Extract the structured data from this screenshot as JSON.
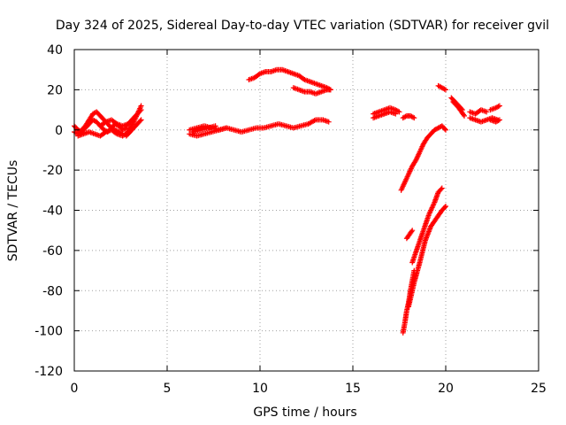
{
  "chart_data": {
    "type": "scatter",
    "title": "Day 324 of 2025, Sidereal Day-to-day VTEC variation (SDTVAR) for receiver gvil",
    "xlabel": "GPS time / hours",
    "ylabel": "SDTVAR / TECUs",
    "xlim": [
      0,
      25
    ],
    "ylim": [
      -120,
      40
    ],
    "xticks": [
      "0",
      "5",
      "10",
      "15",
      "20",
      "25"
    ],
    "yticks": [
      "-120",
      "-100",
      "-80",
      "-60",
      "-40",
      "-20",
      "0",
      "20",
      "40"
    ],
    "grid": true,
    "marker": "+",
    "color": "#ff0000",
    "series": [
      {
        "x": [
          0.0,
          0.2,
          0.4,
          0.6,
          0.8,
          1.0,
          1.2,
          1.4,
          1.6,
          1.8,
          2.0,
          2.2,
          2.4,
          2.6,
          2.8
        ],
        "y": [
          2,
          0,
          -1,
          1,
          3,
          5,
          4,
          2,
          0,
          -1,
          1,
          3,
          2,
          0,
          1
        ]
      },
      {
        "x": [
          0.0,
          0.2,
          0.4,
          0.6,
          0.8,
          1.0,
          1.2,
          1.4,
          1.6,
          1.8,
          2.0,
          2.2,
          2.4,
          2.6
        ],
        "y": [
          -1,
          -2,
          0,
          2,
          5,
          8,
          9,
          7,
          5,
          3,
          1,
          0,
          -1,
          -2
        ]
      },
      {
        "x": [
          0.2,
          0.5,
          0.8,
          1.1,
          1.4,
          1.7,
          2.0,
          2.3,
          2.6,
          2.8
        ],
        "y": [
          -3,
          -2,
          -1,
          -2,
          -3,
          -1,
          0,
          -2,
          -3,
          -2
        ]
      },
      {
        "x": [
          1.4,
          1.7,
          2.0,
          2.3,
          2.6,
          2.9
        ],
        "y": [
          2,
          4,
          5,
          3,
          2,
          3
        ]
      },
      {
        "x": [
          2.8,
          3.0,
          3.2,
          3.4,
          3.6
        ],
        "y": [
          2,
          4,
          6,
          8,
          10
        ]
      },
      {
        "x": [
          2.8,
          3.0,
          3.2,
          3.4,
          3.6
        ],
        "y": [
          -3,
          -1,
          1,
          3,
          5
        ]
      },
      {
        "x": [
          2.8,
          3.0,
          3.2,
          3.4,
          3.6
        ],
        "y": [
          -2,
          1,
          4,
          8,
          12
        ]
      },
      {
        "x": [
          6.2,
          6.6,
          7.0,
          7.4,
          7.8,
          8.2,
          8.6,
          9.0,
          9.4,
          9.8,
          10.2,
          10.6,
          11.0,
          11.4,
          11.8,
          12.2,
          12.6,
          13.0,
          13.4,
          13.7
        ],
        "y": [
          0,
          1,
          2,
          1,
          0,
          1,
          0,
          -1,
          0,
          1,
          1,
          2,
          3,
          2,
          1,
          2,
          3,
          5,
          5,
          4
        ]
      },
      {
        "x": [
          6.2,
          6.6,
          7.0,
          7.4,
          7.8,
          8.2
        ],
        "y": [
          -2,
          -3,
          -2,
          -1,
          0,
          1
        ]
      },
      {
        "x": [
          6.4,
          6.8,
          7.2,
          7.6
        ],
        "y": [
          -1,
          0,
          1,
          2
        ]
      },
      {
        "x": [
          9.4,
          9.7,
          10.0,
          10.3,
          10.6,
          10.9,
          11.2,
          11.5,
          11.8,
          12.1,
          12.4,
          12.7,
          13.0,
          13.3,
          13.6,
          13.8
        ],
        "y": [
          25,
          26,
          28,
          29,
          29,
          30,
          30,
          29,
          28,
          27,
          25,
          24,
          23,
          22,
          21,
          20
        ]
      },
      {
        "x": [
          11.8,
          12.1,
          12.4,
          12.7,
          13.0,
          13.3,
          13.6,
          13.8
        ],
        "y": [
          21,
          20,
          19,
          19,
          18,
          19,
          20,
          20
        ]
      },
      {
        "x": [
          16.1,
          16.4,
          16.7,
          17.0,
          17.3,
          17.5
        ],
        "y": [
          8,
          9,
          10,
          11,
          10,
          9
        ]
      },
      {
        "x": [
          16.1,
          16.4,
          16.7,
          17.0,
          17.3
        ],
        "y": [
          6,
          7,
          8,
          9,
          8
        ]
      },
      {
        "x": [
          17.7,
          17.9,
          18.1,
          18.3
        ],
        "y": [
          6,
          7,
          7,
          6
        ]
      },
      {
        "x": [
          17.6,
          17.8,
          18.0,
          18.2,
          18.4,
          18.6,
          18.8,
          19.0,
          19.2,
          19.4,
          19.6,
          19.8,
          20.0
        ],
        "y": [
          -30,
          -26,
          -22,
          -18,
          -15,
          -11,
          -7,
          -4,
          -2,
          0,
          1,
          2,
          0
        ]
      },
      {
        "x": [
          17.9,
          18.2
        ],
        "y": [
          -54,
          -50
        ]
      },
      {
        "x": [
          17.7,
          17.8,
          17.9,
          18.0,
          18.1,
          18.2,
          18.3
        ],
        "y": [
          -101,
          -96,
          -90,
          -86,
          -80,
          -75,
          -70
        ]
      },
      {
        "x": [
          18.0,
          18.3,
          18.6,
          18.9,
          19.2,
          19.5,
          19.8,
          20.0
        ],
        "y": [
          -88,
          -76,
          -66,
          -55,
          -48,
          -44,
          -40,
          -38
        ]
      },
      {
        "x": [
          18.2,
          18.5,
          18.8,
          19.1,
          19.4,
          19.6,
          19.8
        ],
        "y": [
          -66,
          -58,
          -50,
          -42,
          -36,
          -31,
          -29
        ]
      },
      {
        "x": [
          19.6,
          19.8,
          20.0
        ],
        "y": [
          22,
          21,
          20
        ]
      },
      {
        "x": [
          20.3,
          20.6,
          20.9
        ],
        "y": [
          16,
          13,
          10
        ]
      },
      {
        "x": [
          20.4,
          20.7,
          21.0
        ],
        "y": [
          14,
          11,
          7
        ]
      },
      {
        "x": [
          21.3,
          21.6,
          21.9,
          22.2
        ],
        "y": [
          9,
          8,
          10,
          9
        ]
      },
      {
        "x": [
          21.3,
          21.6,
          21.9,
          22.2,
          22.5,
          22.8
        ],
        "y": [
          6,
          5,
          4,
          5,
          6,
          5
        ]
      },
      {
        "x": [
          22.4,
          22.7,
          22.9
        ],
        "y": [
          10,
          11,
          12
        ]
      },
      {
        "x": [
          22.4,
          22.7,
          22.9
        ],
        "y": [
          5,
          4,
          5
        ]
      }
    ]
  }
}
